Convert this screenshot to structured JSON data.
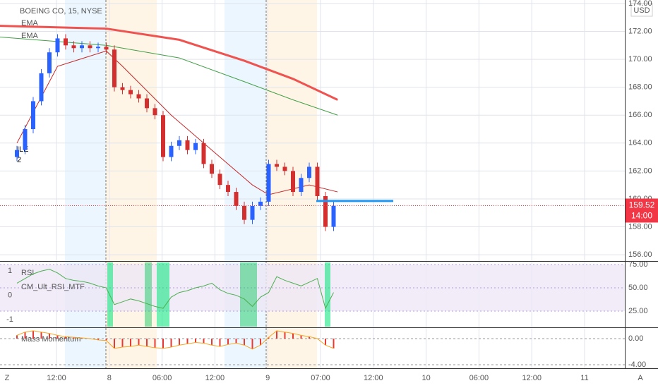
{
  "chart_data": {
    "type": "candlestick",
    "title": "BOEING CO, 15, NYSE",
    "currency": "USD",
    "legend_labels": [
      "EMA",
      "EMA"
    ],
    "side_labels": [
      "ILE",
      "2"
    ],
    "corner_labels": [
      "Z",
      "A"
    ],
    "up_color": "#2962ff",
    "down_color": "#d32f2f",
    "open": [
      163,
      163.5,
      165,
      167,
      169,
      170.5,
      171.5,
      171,
      170.8,
      171,
      170.8,
      170.9,
      170.7,
      168,
      167.8,
      167.5,
      167.2,
      166.5,
      166,
      163,
      163.8,
      164.2,
      163.5,
      164,
      162.5,
      161.8,
      161,
      160.5,
      159.5,
      158.5,
      159.5,
      159.8,
      162.5,
      162.3,
      162,
      160.5,
      161.5,
      162.3,
      160.2,
      158
    ],
    "high": [
      163.8,
      165.3,
      167.3,
      169.3,
      170.8,
      171.8,
      171.8,
      171.3,
      171.3,
      171.3,
      171.2,
      171.2,
      171,
      168.3,
      168.1,
      167.8,
      167.5,
      166.8,
      166.3,
      164.1,
      164.5,
      164.5,
      164.3,
      164.3,
      162.8,
      162.1,
      161.3,
      160.8,
      159.8,
      159.8,
      160.1,
      162.8,
      162.8,
      162.6,
      162.3,
      161.8,
      162.6,
      162.6,
      160.5,
      159.8
    ],
    "low": [
      162.7,
      163.2,
      164.7,
      166.7,
      168.7,
      170.2,
      170.7,
      170.5,
      170.5,
      170.5,
      170.5,
      170.4,
      167.7,
      167.5,
      167.2,
      166.9,
      166.2,
      165.7,
      162.7,
      162.7,
      163.5,
      163.2,
      163.2,
      162.2,
      161.5,
      160.7,
      160.2,
      159.2,
      158.2,
      158.2,
      159.2,
      159.5,
      162,
      161.7,
      160.2,
      160.2,
      161.2,
      159.9,
      157.7,
      157.7
    ],
    "close": [
      163.5,
      165,
      167,
      169,
      170.5,
      171.5,
      171,
      170.8,
      171,
      170.8,
      170.9,
      170.7,
      168,
      167.8,
      167.5,
      167.2,
      166.5,
      166,
      163,
      163.8,
      164.2,
      163.5,
      164,
      162.5,
      161.8,
      161,
      160.5,
      159.5,
      158.5,
      159.5,
      159.8,
      162.5,
      162.3,
      162,
      160.5,
      161.5,
      162.3,
      160.2,
      158,
      159.5
    ],
    "lines": [
      {
        "name": "EMA",
        "color": "#ef5350",
        "width": 3,
        "x": [
          -2.2,
          11,
          20,
          28,
          34,
          39.5
        ],
        "values": [
          172.4,
          172.2,
          171.4,
          169.9,
          168.6,
          167.1
        ]
      },
      {
        "name": "EMA",
        "color": "#43a047",
        "width": 1,
        "x": [
          -2.2,
          11,
          20,
          28,
          34,
          39.5
        ],
        "values": [
          171.6,
          171.0,
          170.1,
          168.4,
          167.1,
          166.0
        ]
      },
      {
        "name": "EMA",
        "color": "#c62828",
        "width": 1,
        "x": [
          0,
          5,
          11,
          13,
          19,
          24,
          29,
          31,
          36,
          39.5
        ],
        "values": [
          164,
          169.5,
          170.6,
          169.5,
          166,
          163.5,
          161,
          160.3,
          161,
          160.5
        ]
      }
    ],
    "hline": {
      "value": 159.85,
      "color": "#2196f3"
    },
    "last_price": {
      "value": 159.52,
      "time": "14:00",
      "color": "#f23645"
    },
    "ylim": [
      155.55,
      174.25
    ],
    "yticks": [
      {
        "value": 156,
        "label": "156.00"
      },
      {
        "value": 158,
        "label": "158.00"
      },
      {
        "value": 160,
        "label": "160.00"
      },
      {
        "value": 162,
        "label": "162.00"
      },
      {
        "value": 164,
        "label": "164.00"
      },
      {
        "value": 166,
        "label": "166.00"
      },
      {
        "value": 168,
        "label": "168.00"
      },
      {
        "value": 170,
        "label": "170.00"
      },
      {
        "value": 172,
        "label": "172.00"
      },
      {
        "value": 174,
        "label": "174.00"
      }
    ],
    "xtick_labels": [
      "12:00",
      "8",
      "06:00",
      "12:00",
      "9",
      "07:00",
      "12:00",
      "10",
      "06:00",
      "12:00",
      "11"
    ],
    "rsi": {
      "title": "RSI",
      "subtitle": "CM_Ult_RSI_MTF",
      "color": "#4caf50",
      "values": [
        55,
        60,
        65,
        68,
        70,
        66,
        60,
        58,
        57,
        55,
        52,
        50,
        32,
        35,
        38,
        36,
        33,
        30,
        28,
        40,
        45,
        47,
        50,
        52,
        55,
        48,
        44,
        42,
        38,
        30,
        40,
        45,
        62,
        58,
        55,
        52,
        56,
        60,
        28,
        45
      ],
      "ylim": [
        8.3,
        77.3
      ],
      "yticks": [
        {
          "value": 25,
          "label": "25.00"
        },
        {
          "value": 50,
          "label": "50.00"
        },
        {
          "value": 75,
          "label": "75.00"
        }
      ],
      "left_ylim": [
        -1.29,
        1.35
      ],
      "left_ticks": [
        1,
        0,
        -1
      ]
    },
    "momentum": {
      "title": "Mass Momentum",
      "bar_color": "#e53935",
      "line_color": "#f5a623",
      "values": [
        0.5,
        1,
        1.2,
        1,
        0.8,
        0.5,
        0.3,
        0.2,
        0.1,
        0,
        -0.2,
        -0.3,
        -1.5,
        -1.3,
        -1.2,
        -1,
        -1.2,
        -1.4,
        -1.5,
        -1.3,
        -1,
        -0.8,
        -0.6,
        -0.7,
        -1,
        -1.2,
        -0.9,
        -0.7,
        -1,
        -1.6,
        -1,
        0.2,
        1.2,
        1,
        0.8,
        0.5,
        0.3,
        0,
        -1,
        -1.5
      ],
      "ylim": [
        -4.54,
        1.51
      ],
      "yticks": [
        {
          "value": 0,
          "label": "0.00"
        },
        {
          "value": -4,
          "label": "-4.00"
        }
      ]
    }
  }
}
